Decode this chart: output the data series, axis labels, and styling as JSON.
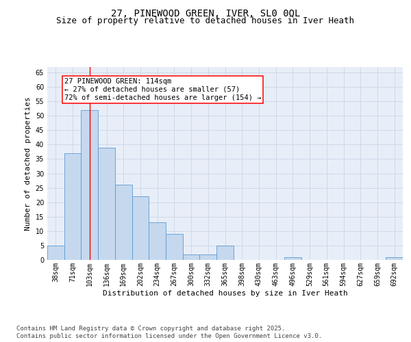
{
  "title_line1": "27, PINEWOOD GREEN, IVER, SL0 0QL",
  "title_line2": "Size of property relative to detached houses in Iver Heath",
  "xlabel": "Distribution of detached houses by size in Iver Heath",
  "ylabel": "Number of detached properties",
  "categories": [
    "38sqm",
    "71sqm",
    "103sqm",
    "136sqm",
    "169sqm",
    "202sqm",
    "234sqm",
    "267sqm",
    "300sqm",
    "332sqm",
    "365sqm",
    "398sqm",
    "430sqm",
    "463sqm",
    "496sqm",
    "529sqm",
    "561sqm",
    "594sqm",
    "627sqm",
    "659sqm",
    "692sqm"
  ],
  "values": [
    5,
    37,
    52,
    39,
    26,
    22,
    13,
    9,
    2,
    2,
    5,
    0,
    0,
    0,
    1,
    0,
    0,
    0,
    0,
    0,
    1
  ],
  "bar_color": "#c5d8ed",
  "bar_edge_color": "#5b9bd5",
  "red_line_x": 2,
  "annotation_text": "27 PINEWOOD GREEN: 114sqm\n← 27% of detached houses are smaller (57)\n72% of semi-detached houses are larger (154) →",
  "annotation_box_color": "white",
  "annotation_box_edge_color": "red",
  "ylim": [
    0,
    67
  ],
  "yticks": [
    0,
    5,
    10,
    15,
    20,
    25,
    30,
    35,
    40,
    45,
    50,
    55,
    60,
    65
  ],
  "grid_color": "#d0d8e8",
  "background_color": "#e8eef8",
  "footer_line1": "Contains HM Land Registry data © Crown copyright and database right 2025.",
  "footer_line2": "Contains public sector information licensed under the Open Government Licence v3.0.",
  "title_fontsize": 10,
  "subtitle_fontsize": 9,
  "axis_label_fontsize": 8,
  "tick_fontsize": 7,
  "annotation_fontsize": 7.5,
  "footer_fontsize": 6.5
}
